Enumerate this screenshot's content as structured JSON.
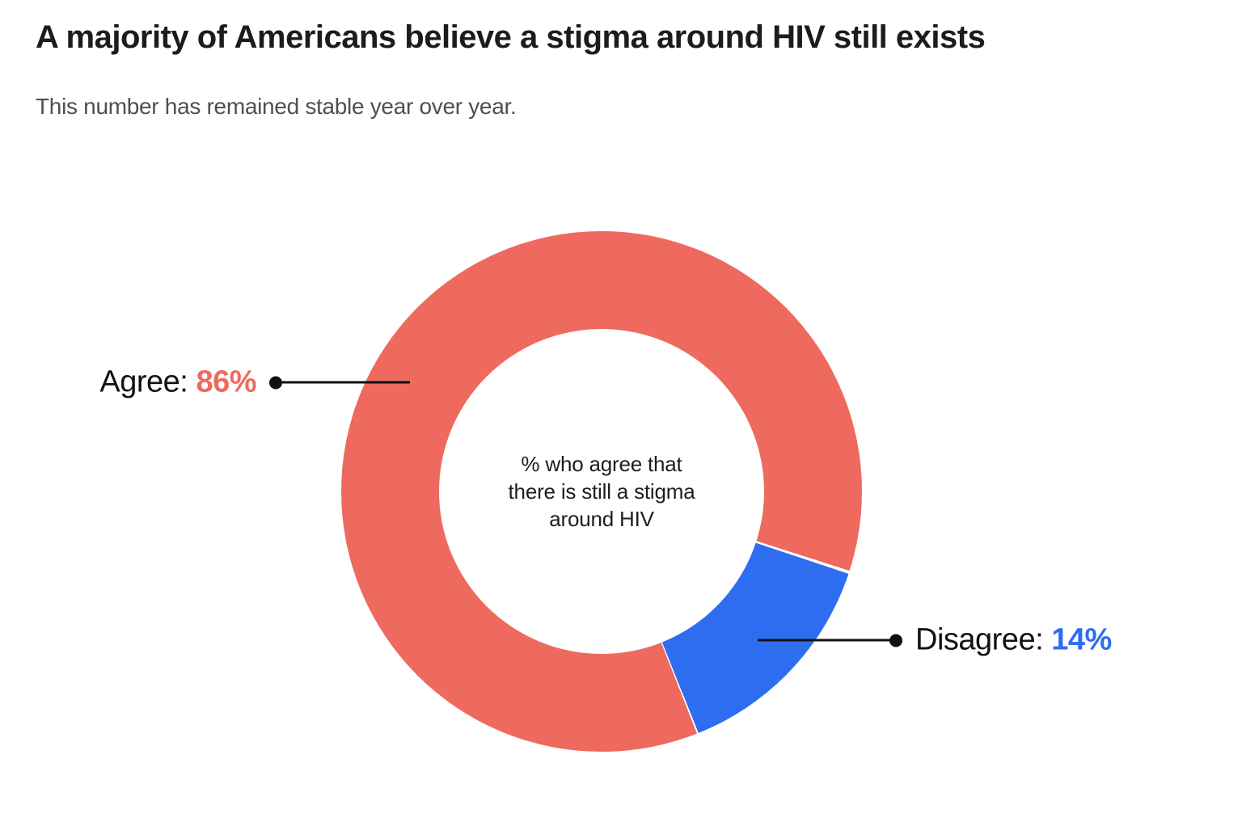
{
  "header": {
    "title": "A majority of Americans believe a stigma around HIV still exists",
    "subtitle": "This number has remained stable year over year."
  },
  "chart_data": {
    "type": "pie",
    "subtype": "donut",
    "title": "A majority of Americans believe a stigma around HIV still exists",
    "subtitle": "This number has remained stable year over year.",
    "categories": [
      "Agree",
      "Disagree"
    ],
    "values": [
      86,
      14
    ],
    "colors": [
      "#ee6a5f",
      "#2f6df0"
    ],
    "start_angle_deg": 158.5,
    "slice_gap_deg": 0.7,
    "center_label_lines": [
      "% who agree that",
      "there is still a stigma",
      "around HIV"
    ],
    "legend_position": "callouts",
    "leader_color": "#111111",
    "callouts": {
      "agree": {
        "prefix": "Agree:",
        "value": "86%",
        "side": "left"
      },
      "disagree": {
        "prefix": "Disagree:",
        "value": "14%",
        "side": "right"
      }
    }
  }
}
